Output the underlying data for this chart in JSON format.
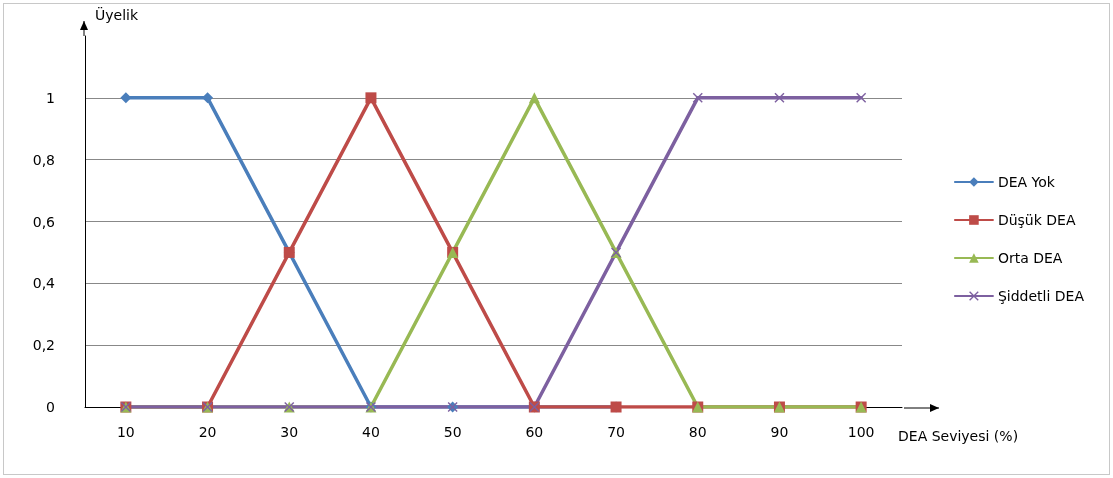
{
  "chart_data": {
    "type": "line",
    "xlabel": "DEA Seviyesi (%)",
    "ylabel": "Üyelik",
    "categories": [
      "10",
      "20",
      "30",
      "40",
      "50",
      "60",
      "70",
      "80",
      "90",
      "100"
    ],
    "series": [
      {
        "name": "DEA Yok",
        "color": "#4a7ebb",
        "marker": "diamond",
        "values": [
          1,
          1,
          0.5,
          0,
          0,
          0,
          0,
          null,
          null,
          null
        ]
      },
      {
        "name": "Düşük DEA",
        "color": "#be4b48",
        "marker": "square",
        "values": [
          0,
          0,
          0.5,
          1,
          0.5,
          0,
          0,
          0,
          0,
          0
        ]
      },
      {
        "name": "Orta DEA",
        "color": "#98b954",
        "marker": "triangle",
        "values": [
          0,
          0,
          0,
          0,
          0.5,
          1,
          0.5,
          0,
          0,
          0
        ]
      },
      {
        "name": "Şiddetli DEA",
        "color": "#7d60a0",
        "marker": "cross",
        "values": [
          0,
          0,
          0,
          0,
          0,
          0,
          0.5,
          1,
          1,
          1
        ]
      }
    ],
    "ylim": [
      0,
      1.2
    ],
    "yticks": [
      0,
      {
        "value": 0.2,
        "label": "0,2"
      },
      {
        "value": 0.4,
        "label": "0,4"
      },
      {
        "value": 0.6,
        "label": "0,6"
      },
      {
        "value": 0.8,
        "label": "0,8"
      },
      1
    ],
    "grid": "y",
    "legend": "right",
    "line_style": "solid"
  }
}
